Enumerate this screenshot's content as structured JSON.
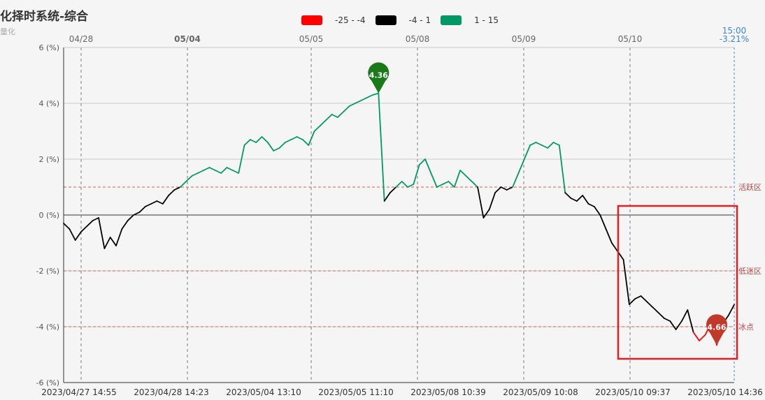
{
  "title": "化择时系统-综合",
  "subtitle": "量化",
  "legend": [
    {
      "label": "-25 - -4",
      "color": "#ff0000"
    },
    {
      "label": "-4 - 1",
      "color": "#000000"
    },
    {
      "label": "1 - 15",
      "color": "#009966"
    }
  ],
  "chart_data": {
    "type": "line",
    "ylim": [
      -6,
      6
    ],
    "y_ticks": [
      "6 (%)",
      "4 (%)",
      "2 (%)",
      "0 (%)",
      "-2 (%)",
      "-4 (%)",
      "-6 (%)"
    ],
    "y_tick_values": [
      6,
      4,
      2,
      0,
      -2,
      -4,
      -6
    ],
    "x_labels": [
      "2023/04/27 14:55",
      "2023/04/28 14:23",
      "2023/05/04 13:10",
      "2023/05/05 11:10",
      "2023/05/08 10:39",
      "2023/05/09 10:08",
      "2023/05/10 09:37",
      "2023/05/10 14:36"
    ],
    "day_labels": [
      "04/28",
      "05/04",
      "05/05",
      "05/08",
      "05/09",
      "05/10"
    ],
    "current": {
      "time": "15:00",
      "value": "-3.21%"
    },
    "reference_lines": [
      {
        "value": 1,
        "label": "活跃区"
      },
      {
        "value": -2,
        "label": "低迷区"
      },
      {
        "value": -4,
        "label": "冰点"
      }
    ],
    "color_bands": [
      {
        "range": [
          -25,
          -4
        ],
        "color": "#ff0000"
      },
      {
        "range": [
          -4,
          1
        ],
        "color": "#000000"
      },
      {
        "range": [
          1,
          15
        ],
        "color": "#009966"
      }
    ],
    "markers": [
      {
        "label": "4.36",
        "value": 4.36,
        "color": "#1a7a1a"
      },
      {
        "label": "-4.66",
        "display": "4.66",
        "value": -4.66,
        "color": "#c0392b"
      }
    ],
    "series": [
      {
        "values": [
          -0.3,
          -0.5,
          -0.9,
          -0.6,
          -0.4,
          -0.2,
          -0.1,
          -1.2,
          -0.8,
          -1.1,
          -0.5,
          -0.2,
          0.0,
          0.1,
          0.3,
          0.4,
          0.5,
          0.4,
          0.7,
          0.9,
          1.0,
          1.2,
          1.4,
          1.5,
          1.6,
          1.7,
          1.6,
          1.5,
          1.7,
          1.6,
          1.5,
          2.5,
          2.7,
          2.6,
          2.8,
          2.6,
          2.3,
          2.4,
          2.6,
          2.7,
          2.8,
          2.7,
          2.5,
          3.0,
          3.2,
          3.4,
          3.6,
          3.5,
          3.7,
          3.9,
          4.0,
          4.1,
          4.2,
          4.3,
          4.36,
          0.5,
          0.8,
          1.0,
          1.2,
          1.0,
          1.1,
          1.8,
          2.0,
          1.5,
          1.0,
          1.1,
          1.2,
          1.0,
          1.6,
          1.4,
          1.2,
          1.0,
          -0.1,
          0.2,
          0.8,
          1.0,
          0.9,
          1.0,
          1.5,
          2.0,
          2.5,
          2.6,
          2.5,
          2.4,
          2.6,
          2.5,
          0.8,
          0.6,
          0.5,
          0.7,
          0.4,
          0.3,
          0.0,
          -0.5,
          -1.0,
          -1.3,
          -1.6,
          -3.2,
          -3.0,
          -2.9,
          -3.1,
          -3.3,
          -3.5,
          -3.7,
          -3.8,
          -4.1,
          -3.8,
          -3.4,
          -4.2,
          -4.5,
          -4.3,
          -3.9,
          -4.66,
          -3.9,
          -3.6,
          -3.21
        ]
      }
    ]
  }
}
